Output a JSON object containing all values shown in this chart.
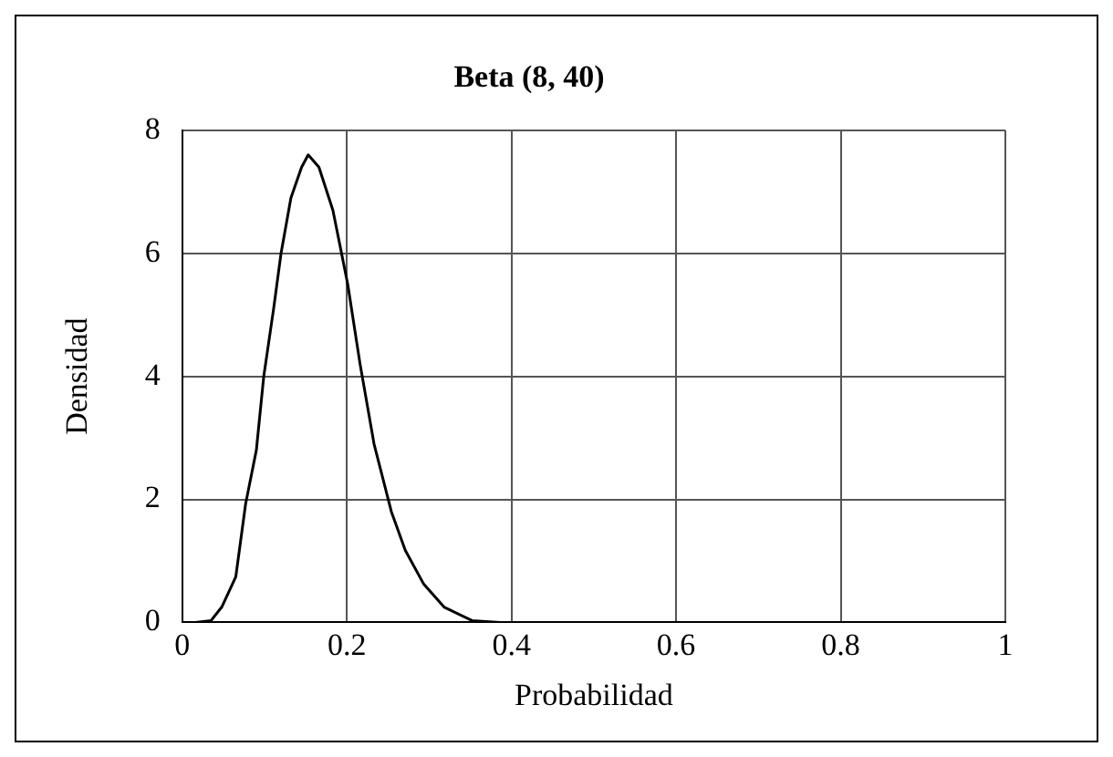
{
  "chart_data": {
    "type": "line",
    "title": "Beta (8, 40)",
    "xlabel": "Probabilidad",
    "ylabel": "Densidad",
    "series": [
      {
        "color": "#000000",
        "x": [
          0.016,
          0.035,
          0.048,
          0.065,
          0.077,
          0.09,
          0.099,
          0.111,
          0.12,
          0.132,
          0.145,
          0.153,
          0.166,
          0.183,
          0.201,
          0.216,
          0.233,
          0.254,
          0.271,
          0.293,
          0.318,
          0.352,
          0.386
        ],
        "values": [
          0,
          0.03,
          0.25,
          0.74,
          1.93,
          2.8,
          4.0,
          5.1,
          6.0,
          6.9,
          7.4,
          7.6,
          7.4,
          6.7,
          5.5,
          4.2,
          2.9,
          1.8,
          1.17,
          0.63,
          0.25,
          0.03,
          0
        ]
      }
    ],
    "xlim": [
      0,
      1
    ],
    "xticks": [
      0,
      0.2,
      0.4,
      0.6,
      0.8,
      1
    ],
    "ylim": [
      0,
      8
    ],
    "yticks": [
      0,
      2,
      4,
      6,
      8
    ],
    "grid": true,
    "legend": false,
    "marker": "none",
    "line_style": "solid"
  }
}
